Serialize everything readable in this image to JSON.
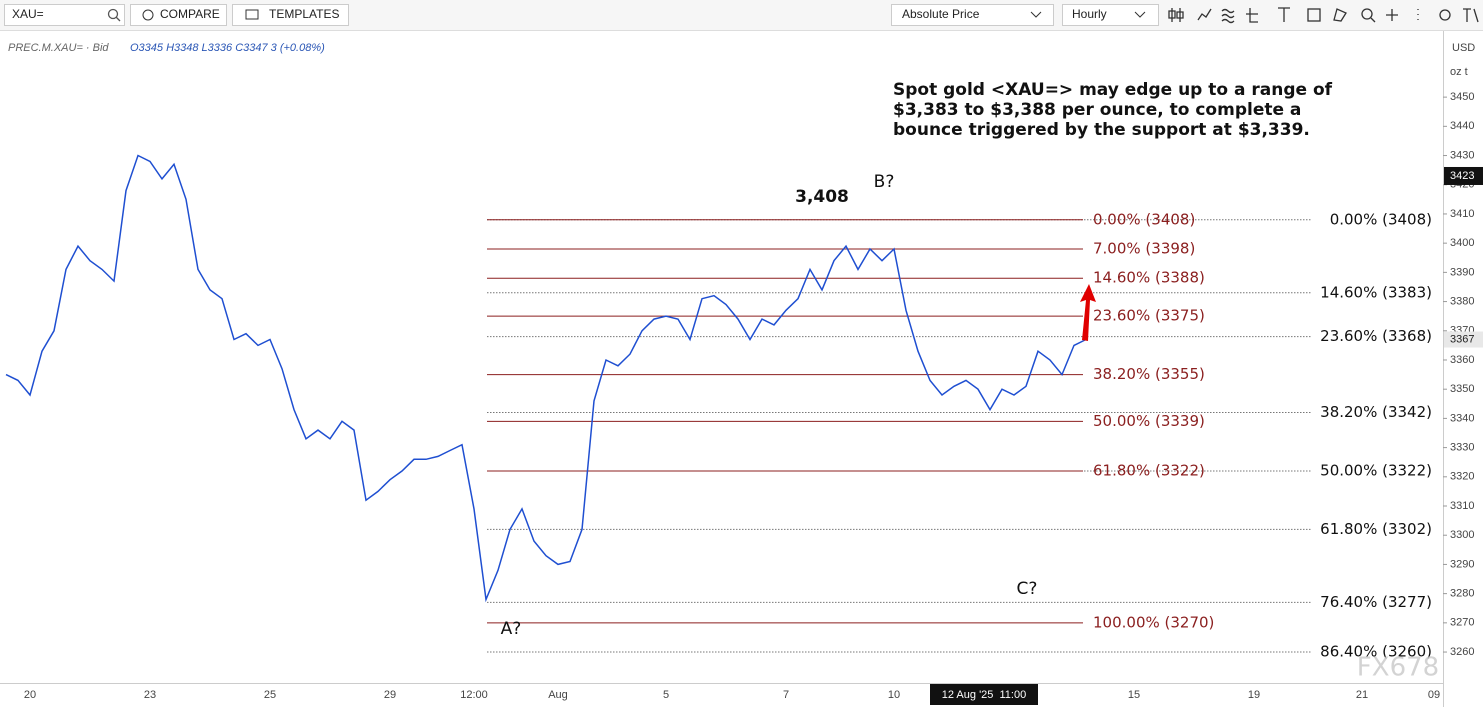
{
  "toolbar": {
    "search": "XAU=",
    "compare": "COMPARE",
    "templates": "TEMPLATES",
    "price_mode": "Absolute Price",
    "interval": "Hourly",
    "currency": "USD",
    "unit": "oz t"
  },
  "header": {
    "symbol": "PREC.M.XAU= · Bid",
    "ohlc": "O3345 H3348 L3336 C3347 3 (+0.08%)"
  },
  "watermark": "FX678",
  "chart_data": {
    "type": "line",
    "color": "#1f4fd1",
    "categories": [
      null,
      null,
      "20",
      null,
      null,
      null,
      null,
      null,
      null,
      null,
      null,
      null,
      "23",
      null,
      null,
      null,
      null,
      null,
      null,
      null,
      null,
      null,
      "25",
      null,
      null,
      null,
      null,
      null,
      null,
      null,
      null,
      null,
      "29",
      null,
      null,
      null,
      null,
      null,
      null,
      "12:00",
      null,
      null,
      null,
      null,
      null,
      null,
      "Aug",
      null,
      null,
      null,
      null,
      null,
      null,
      null,
      null,
      "5",
      null,
      null,
      null,
      null,
      null,
      null,
      null,
      null,
      null,
      "7",
      null,
      null,
      null,
      null,
      null,
      null,
      null,
      null,
      "10",
      null,
      null,
      null,
      null,
      null,
      null,
      null,
      null,
      null,
      null,
      null,
      null,
      null,
      null,
      null,
      null,
      null,
      null,
      null,
      "15",
      null,
      null,
      null,
      null,
      null,
      null,
      null,
      null,
      null,
      "19",
      null,
      null,
      null,
      null,
      null,
      null,
      null,
      null,
      "21",
      null,
      null,
      null,
      null,
      null,
      "09"
    ],
    "values": [
      3355,
      3353,
      3348,
      3363,
      3370,
      3391,
      3399,
      3394,
      3391,
      3387,
      3418,
      3430,
      3428,
      3422,
      3427,
      3415,
      3391,
      3384,
      3381,
      3367,
      3369,
      3365,
      3367,
      3357,
      3343,
      3333,
      3336,
      3333,
      3339,
      3336,
      3312,
      3315,
      3319,
      3322,
      3326,
      3326,
      3327,
      3329,
      3331,
      3309,
      3278,
      3288,
      3302,
      3309,
      3298,
      3293,
      3290,
      3291,
      3302,
      3346,
      3360,
      3358,
      3362,
      3370,
      3374,
      3375,
      3374,
      3367,
      3381,
      3382,
      3379,
      3374,
      3367,
      3374,
      3372,
      3377,
      3381,
      3391,
      3384,
      3394,
      3399,
      3391,
      3398,
      3394,
      3398,
      3377,
      3363,
      3353,
      3348,
      3351,
      3353,
      3350,
      3343,
      3350,
      3348,
      3351,
      3363,
      3360,
      3355,
      3365,
      3367,
      null,
      null,
      null,
      null,
      null,
      null,
      null,
      null,
      null,
      null,
      null,
      null,
      null,
      null,
      null,
      null,
      null,
      null,
      null,
      null,
      null,
      null,
      null,
      null,
      null,
      null,
      null,
      null,
      null
    ],
    "ylim": [
      3249.4,
      3472.3
    ],
    "yticks": [
      3260,
      3270,
      3280,
      3290,
      3300,
      3310,
      3320,
      3330,
      3340,
      3350,
      3360,
      3370,
      3380,
      3390,
      3400,
      3410,
      3420,
      3430,
      3440,
      3450
    ],
    "crosshair_price": 3423,
    "last_price": 3367,
    "crosshair_x_label": "12 Aug '25  11:00",
    "retracement": {
      "color": "#8b1f1f",
      "levels": [
        {
          "value": 3408,
          "label": "0.00% (3408)"
        },
        {
          "value": 3398,
          "label": "7.00% (3398)"
        },
        {
          "value": 3388,
          "label": "14.60% (3388)"
        },
        {
          "value": 3375,
          "label": "23.60% (3375)"
        },
        {
          "value": 3355,
          "label": "38.20% (3355)"
        },
        {
          "value": 3339,
          "label": "50.00% (3339)"
        },
        {
          "value": 3322,
          "label": "61.80% (3322)"
        },
        {
          "value": 3270,
          "label": "100.00% (3270)"
        }
      ]
    },
    "extension": {
      "color": "#777777",
      "levels": [
        {
          "value": 3408,
          "label": "0.00% (3408)"
        },
        {
          "value": 3383,
          "label": "14.60% (3383)"
        },
        {
          "value": 3368,
          "label": "23.60% (3368)"
        },
        {
          "value": 3342,
          "label": "38.20% (3342)"
        },
        {
          "value": 3322,
          "label": "50.00% (3322)"
        },
        {
          "value": 3302,
          "label": "61.80% (3302)"
        },
        {
          "value": 3277,
          "label": "76.40% (3277)"
        },
        {
          "value": 3260,
          "label": "86.40% (3260)"
        }
      ]
    },
    "annotations": {
      "peak": "3,408",
      "b": "B?",
      "a": "A?",
      "c": "C?",
      "comment": [
        "Spot gold <XAU=> may edge up to a range of",
        "$3,383 to $3,388 per ounce, to complete a",
        "bounce triggered by the support at $3,339."
      ]
    }
  }
}
